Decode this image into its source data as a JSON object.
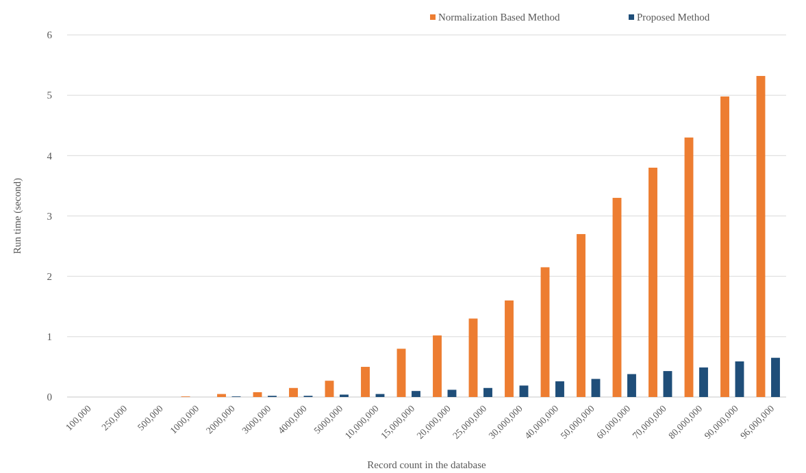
{
  "chart_data": {
    "type": "bar",
    "xlabel": "Record count in the database",
    "ylabel": "Run time (second)",
    "categories": [
      "100,000",
      "250,000",
      "500,000",
      "1000,000",
      "2000,000",
      "3000,000",
      "4000,000",
      "5000,000",
      "10,000,000",
      "15,000,000",
      "20,000,000",
      "25,000,000",
      "30,000,000",
      "40,000,000",
      "50,000,000",
      "60,000,000",
      "70,000,000",
      "80,000,000",
      "90,000,000",
      "96,000,000"
    ],
    "series": [
      {
        "name": "Normalization Based Method",
        "color": "#ed7d31",
        "values": [
          0,
          0,
          0,
          0.01,
          0.05,
          0.08,
          0.15,
          0.27,
          0.5,
          0.8,
          1.02,
          1.3,
          1.6,
          2.15,
          2.7,
          3.3,
          3.8,
          4.3,
          4.98,
          5.32
        ]
      },
      {
        "name": "Proposed Method",
        "color": "#1f4e79",
        "values": [
          0,
          0,
          0,
          0,
          0.01,
          0.02,
          0.02,
          0.04,
          0.05,
          0.1,
          0.12,
          0.15,
          0.19,
          0.26,
          0.3,
          0.38,
          0.43,
          0.49,
          0.59,
          0.65
        ]
      }
    ],
    "ylim": [
      0,
      6
    ],
    "yticks": [
      0,
      1,
      2,
      3,
      4,
      5,
      6
    ],
    "grid": "y",
    "legend": "top right"
  }
}
